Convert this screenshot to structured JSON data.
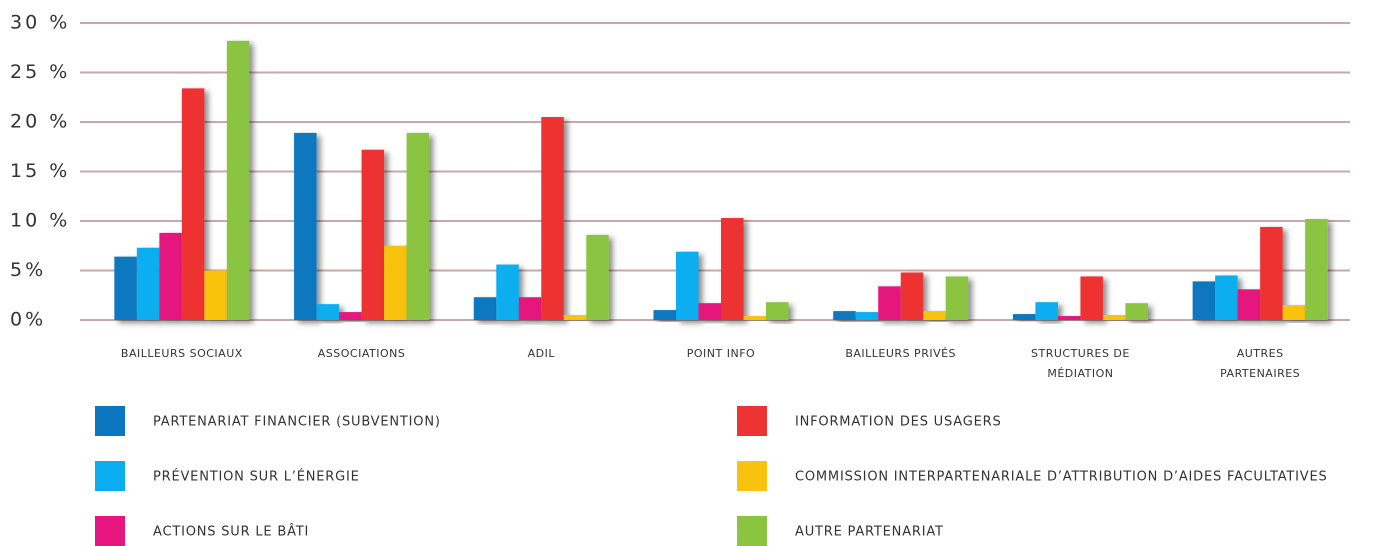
{
  "chart_data": {
    "type": "bar",
    "categories": [
      "BAILLEURS SOCIAUX",
      "ASSOCIATIONS",
      "ADIL",
      "POINT INFO",
      "BAILLEURS PRIVÉS",
      "STRUCTURES DE\nMÉDIATION",
      "AUTRES\nPARTENAIRES"
    ],
    "series": [
      {
        "name": "PARTENARIAT FINANCIER (SUBVENTION)",
        "color": "#0a77c0",
        "values": [
          6.4,
          18.9,
          2.3,
          1.0,
          0.9,
          0.6,
          3.9
        ]
      },
      {
        "name": "PRÉVENTION SUR L’ÉNERGIE",
        "color": "#0aaef0",
        "values": [
          7.3,
          1.6,
          5.6,
          6.9,
          0.8,
          1.8,
          4.5
        ]
      },
      {
        "name": "ACTIONS SUR LE BÂTI",
        "color": "#e6157f",
        "values": [
          8.8,
          0.8,
          2.3,
          1.7,
          3.4,
          0.4,
          3.1
        ]
      },
      {
        "name": "INFORMATION DES USAGERS",
        "color": "#ee3333",
        "values": [
          23.4,
          17.2,
          20.5,
          10.3,
          4.8,
          4.4,
          9.4
        ]
      },
      {
        "name": "COMMISSION INTERPARTENARIALE D’ATTRIBUTION D’AIDES FACULTATIVES",
        "color": "#f8c20e",
        "values": [
          5.0,
          7.5,
          0.5,
          0.4,
          0.9,
          0.5,
          1.5
        ]
      },
      {
        "name": "AUTRE PARTENARIAT",
        "color": "#8bc43f",
        "values": [
          28.2,
          18.9,
          8.6,
          1.8,
          4.4,
          1.7,
          10.2
        ]
      }
    ],
    "ylim": [
      0,
      30
    ],
    "yticks": [
      {
        "value": 0,
        "label": "0%"
      },
      {
        "value": 5,
        "label": "5%"
      },
      {
        "value": 10,
        "label": "10 %"
      },
      {
        "value": 15,
        "label": "15 %"
      },
      {
        "value": 20,
        "label": "20 %"
      },
      {
        "value": 25,
        "label": "25 %"
      },
      {
        "value": 30,
        "label": "30 %"
      }
    ],
    "grid": true
  }
}
